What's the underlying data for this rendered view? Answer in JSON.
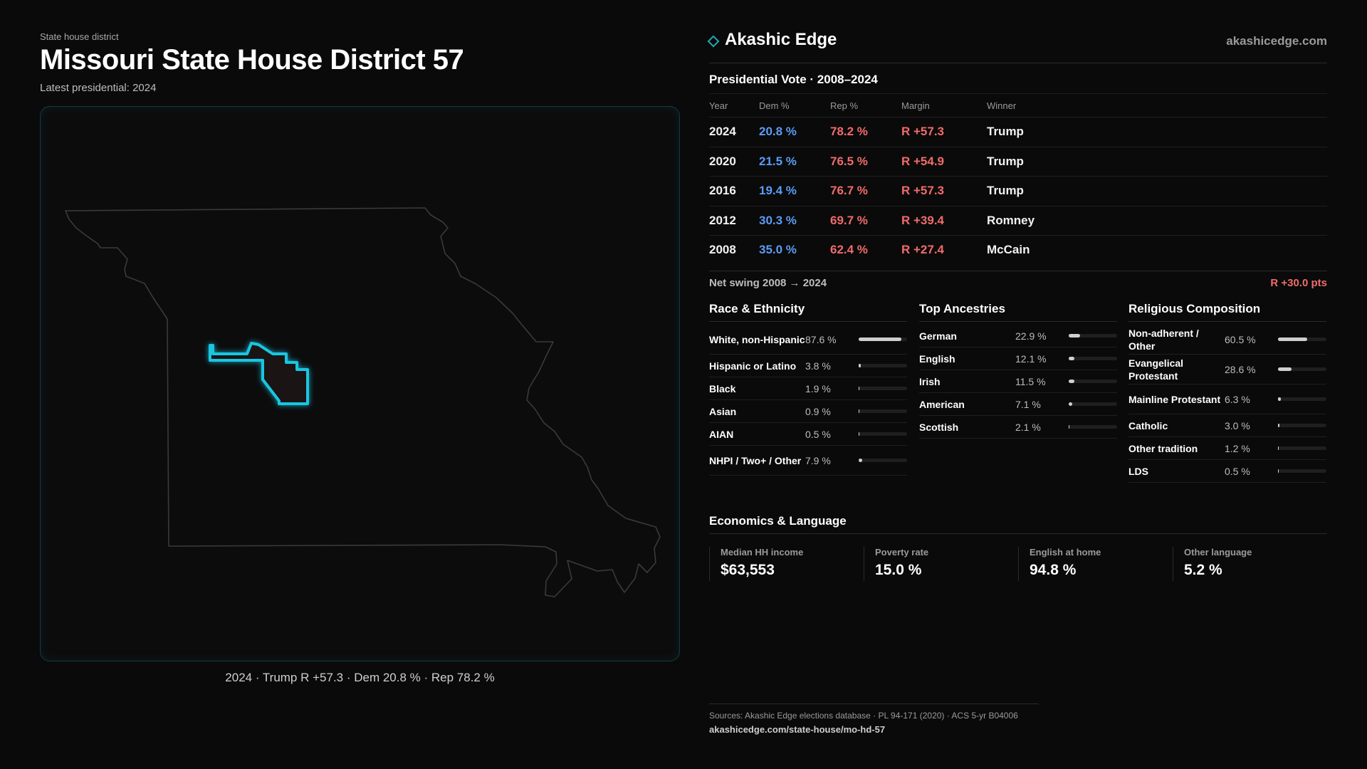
{
  "header": {
    "eyebrow": "State house district",
    "title": "Missouri State House District 57",
    "latest": "Latest presidential: 2024"
  },
  "map": {
    "caption": "2024 · Trump R +57.3 · Dem 20.8 % · Rep 78.2 %",
    "highlight_color": "#19c6e0",
    "outline_color": "#3a3a3a"
  },
  "brand": {
    "name": "Akashic Edge",
    "url": "akashicedge.com",
    "accent": "#1fa9b0"
  },
  "presidential": {
    "title": "Presidential Vote · 2008–2024",
    "columns": [
      "Year",
      "Dem %",
      "Rep %",
      "Margin",
      "Winner"
    ],
    "rows": [
      {
        "year": "2024",
        "dem": "20.8 %",
        "rep": "78.2 %",
        "margin": "R +57.3",
        "winner": "Trump"
      },
      {
        "year": "2020",
        "dem": "21.5 %",
        "rep": "76.5 %",
        "margin": "R +54.9",
        "winner": "Trump"
      },
      {
        "year": "2016",
        "dem": "19.4 %",
        "rep": "76.7 %",
        "margin": "R +57.3",
        "winner": "Trump"
      },
      {
        "year": "2012",
        "dem": "30.3 %",
        "rep": "69.7 %",
        "margin": "R +39.4",
        "winner": "Romney"
      },
      {
        "year": "2008",
        "dem": "35.0 %",
        "rep": "62.4 %",
        "margin": "R +27.4",
        "winner": "McCain"
      }
    ],
    "swing_label": "Net swing 2008 → 2024",
    "swing_value": "R +30.0 pts",
    "dem_color": "#5b9cf5",
    "rep_color": "#f26b6b"
  },
  "race": {
    "title": "Race & Ethnicity",
    "rows": [
      {
        "label": "White, non-Hispanic",
        "pct": "87.6 %",
        "value": 87.6
      },
      {
        "label": "Hispanic or Latino",
        "pct": "3.8 %",
        "value": 3.8
      },
      {
        "label": "Black",
        "pct": "1.9 %",
        "value": 1.9
      },
      {
        "label": "Asian",
        "pct": "0.9 %",
        "value": 0.9
      },
      {
        "label": "AIAN",
        "pct": "0.5 %",
        "value": 0.5
      },
      {
        "label": "NHPI / Two+ / Other",
        "pct": "7.9 %",
        "value": 7.9
      }
    ]
  },
  "ancestry": {
    "title": "Top Ancestries",
    "rows": [
      {
        "label": "German",
        "pct": "22.9 %",
        "value": 22.9
      },
      {
        "label": "English",
        "pct": "12.1 %",
        "value": 12.1
      },
      {
        "label": "Irish",
        "pct": "11.5 %",
        "value": 11.5
      },
      {
        "label": "American",
        "pct": "7.1 %",
        "value": 7.1
      },
      {
        "label": "Scottish",
        "pct": "2.1 %",
        "value": 2.1
      }
    ]
  },
  "religion": {
    "title": "Religious Composition",
    "rows": [
      {
        "label": "Non-adherent / Other",
        "pct": "60.5 %",
        "value": 60.5
      },
      {
        "label": "Evangelical Protestant",
        "pct": "28.6 %",
        "value": 28.6
      },
      {
        "label": "Mainline Protestant",
        "pct": "6.3 %",
        "value": 6.3
      },
      {
        "label": "Catholic",
        "pct": "3.0 %",
        "value": 3.0
      },
      {
        "label": "Other tradition",
        "pct": "1.2 %",
        "value": 1.2
      },
      {
        "label": "LDS",
        "pct": "0.5 %",
        "value": 0.5
      }
    ]
  },
  "economics": {
    "title": "Economics & Language",
    "items": [
      {
        "label": "Median HH income",
        "value": "$63,553"
      },
      {
        "label": "Poverty rate",
        "value": "15.0 %"
      },
      {
        "label": "English at home",
        "value": "94.8 %"
      },
      {
        "label": "Other language",
        "value": "5.2 %"
      }
    ]
  },
  "footer": {
    "sources": "Sources: Akashic Edge elections database · PL 94-171 (2020) · ACS 5-yr B04006",
    "url": "akashicedge.com/state-house/mo-hd-57"
  }
}
